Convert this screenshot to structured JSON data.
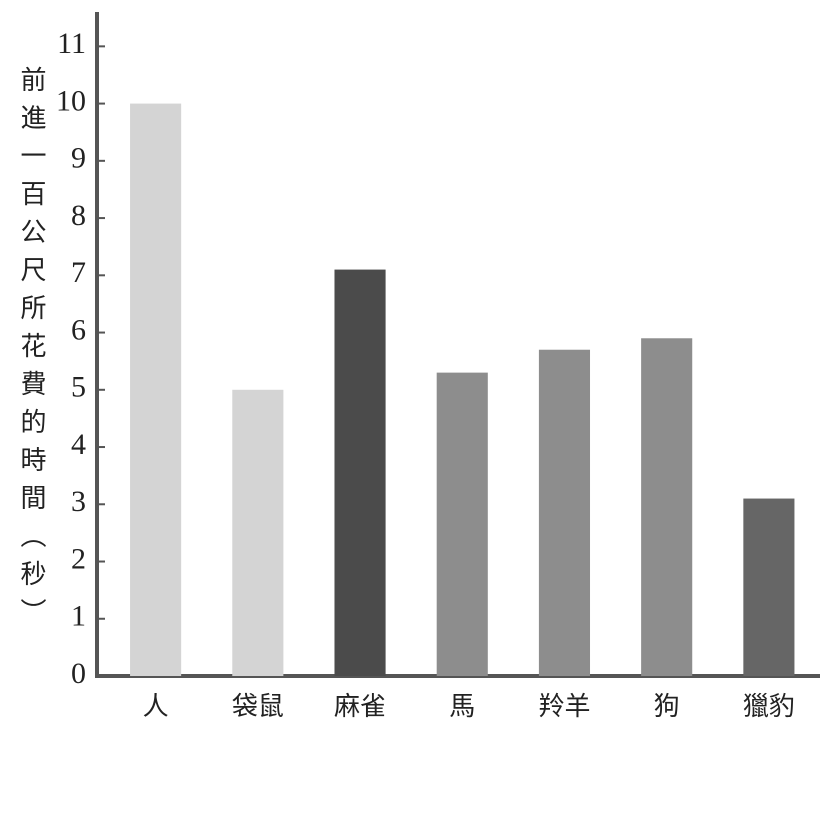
{
  "chart_data": {
    "type": "bar",
    "y_label": "前進一百公尺所花費的時間（秒）",
    "categories": [
      "人",
      "袋鼠",
      "麻雀",
      "馬",
      "羚羊",
      "狗",
      "獵豹"
    ],
    "values": [
      10,
      5,
      7.1,
      5.3,
      5.7,
      5.9,
      3.1
    ],
    "colors": [
      "#d4d4d4",
      "#d4d4d4",
      "#4b4b4b",
      "#8d8d8d",
      "#8d8d8d",
      "#8d8d8d",
      "#666666"
    ],
    "ylim": [
      0,
      11.6
    ],
    "yticks": [
      0,
      1,
      2,
      3,
      4,
      5,
      6,
      7,
      8,
      9,
      10,
      11
    ],
    "grid": false
  }
}
